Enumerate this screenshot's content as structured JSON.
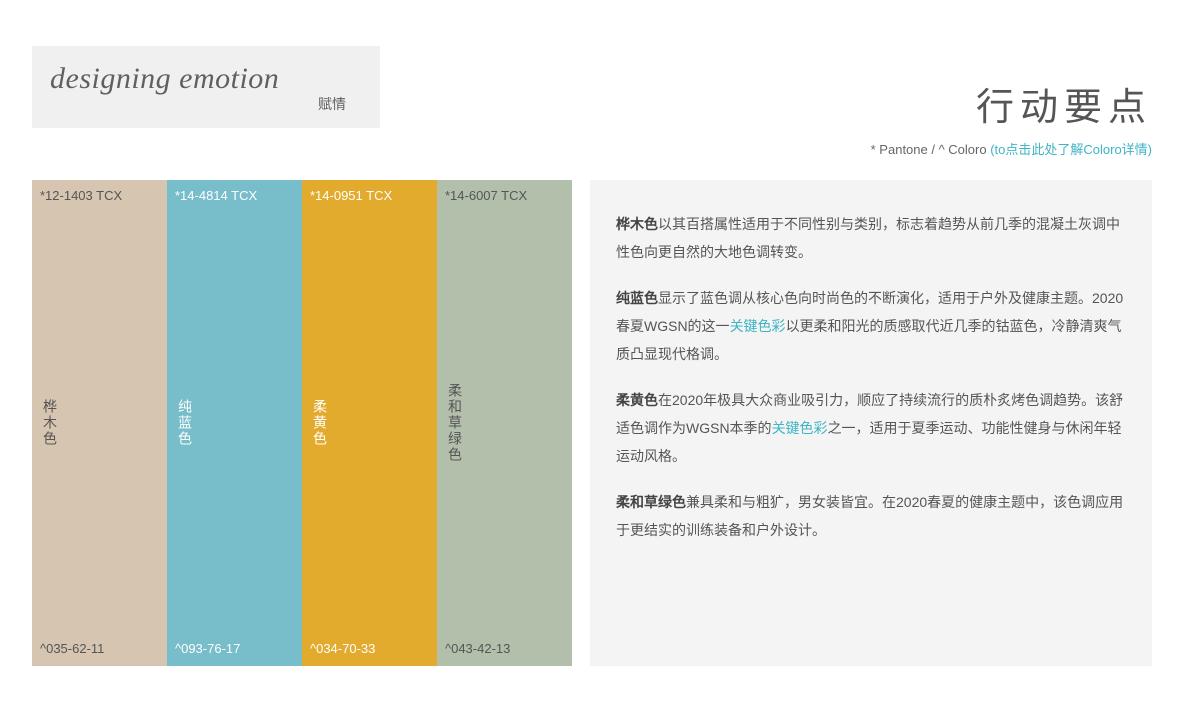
{
  "logo": {
    "main": "designing emotion",
    "sub": "赋情"
  },
  "title": "行动要点",
  "subtitle": {
    "prefix": "* Pantone / ^ Coloro ",
    "link": "(to点击此处了解Coloro详情)"
  },
  "link_color": "#3fb4c5",
  "swatches": [
    {
      "top": "*12-1403 TCX",
      "name": "桦木色",
      "bottom": "^035-62-11",
      "bg": "#d6c5b0",
      "text_on_swatch": "#555555"
    },
    {
      "top": "*14-4814 TCX",
      "name": "纯蓝色",
      "bottom": "^093-76-17",
      "bg": "#78bdca",
      "text_on_swatch": "#ffffff"
    },
    {
      "top": "*14-0951 TCX",
      "name": "柔黄色",
      "bottom": "^034-70-33",
      "bg": "#e2ab2d",
      "text_on_swatch": "#ffffff"
    },
    {
      "top": "*14-6007 TCX",
      "name": "柔和草绿色",
      "bottom": "^043-42-13",
      "bg": "#b2c0ab",
      "text_on_swatch": "#555555"
    }
  ],
  "desc": {
    "p1": {
      "bold": "桦木色",
      "text": "以其百搭属性适用于不同性别与类别，标志着趋势从前几季的混凝土灰调中性色向更自然的大地色调转变。"
    },
    "p2": {
      "bold": "纯蓝色",
      "t1": "显示了蓝色调从核心色向时尚色的不断演化，适用于户外及健康主题。2020春夏WGSN的这一",
      "link": "关键色彩",
      "t2": "以更柔和阳光的质感取代近几季的钴蓝色，冷静清爽气质凸显现代格调。"
    },
    "p3": {
      "bold": "柔黄色",
      "t1": "在2020年极具大众商业吸引力，顺应了持续流行的质朴炙烤色调趋势。该舒适色调作为WGSN本季的",
      "link": "关键色彩",
      "t2": "之一，适用于夏季运动、功能性健身与休闲年轻运动风格。"
    },
    "p4": {
      "bold": "柔和草绿色",
      "text": "兼具柔和与粗犷，男女装皆宜。在2020春夏的健康主题中，该色调应用于更结实的训练装备和户外设计。"
    }
  },
  "panel_bg": "#f4f4f4",
  "logo_bg": "#f0f0f0"
}
